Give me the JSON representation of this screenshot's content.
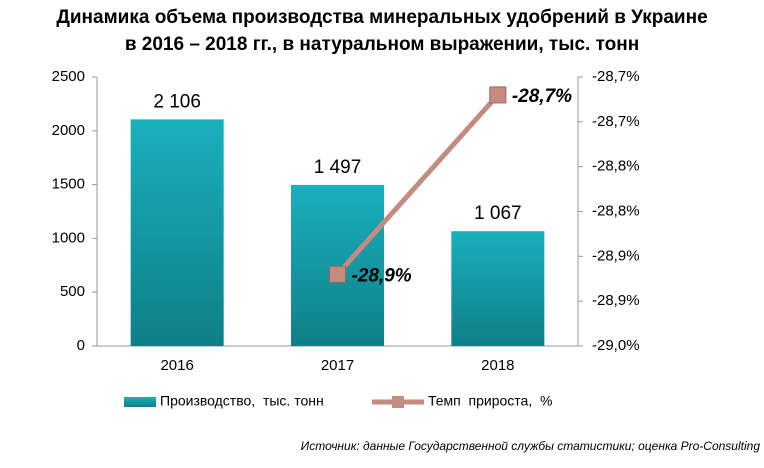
{
  "chart_data": {
    "type": "bar_line",
    "title": [
      "Динамика объема производства минеральных удобрений в Украине",
      "в 2016 – 2018 гг., в натуральном выражении, тыс. тонн"
    ],
    "categories": [
      "2016",
      "2017",
      "2018"
    ],
    "series": [
      {
        "name": "Производство,  тыс. тонн",
        "type": "bar",
        "color": "#1aa3b0",
        "values": [
          2106,
          1497,
          1067
        ],
        "value_labels": [
          "2 106",
          "1 497",
          "1 067"
        ]
      },
      {
        "name": "Темп  прироста,  %",
        "type": "line",
        "axis": "y2",
        "color": "#c48b80",
        "values": [
          null,
          -28.92,
          -28.72
        ],
        "value_labels": [
          null,
          "-28,9%",
          "-28,7%"
        ]
      }
    ],
    "ylim": [
      0,
      2500
    ],
    "yticks": [
      0,
      500,
      1000,
      1500,
      2000,
      2500
    ],
    "y2lim": [
      -29.0,
      -28.7
    ],
    "y2ticks": [
      {
        "value": -29.0,
        "label": "-29,0%"
      },
      {
        "value": -28.95,
        "label": "-28,9%"
      },
      {
        "value": -28.9,
        "label": "-28,9%"
      },
      {
        "value": -28.85,
        "label": "-28,8%"
      },
      {
        "value": -28.8,
        "label": "-28,8%"
      },
      {
        "value": -28.75,
        "label": "-28,7%"
      },
      {
        "value": -28.7,
        "label": "-28,7%"
      }
    ],
    "source": "Источник: данные Государственной службы статистики; оценка Pro-Consulting"
  }
}
